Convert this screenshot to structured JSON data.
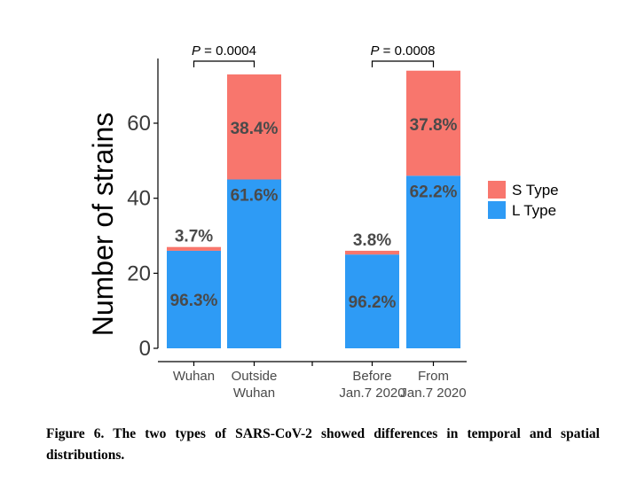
{
  "chart_data": {
    "type": "bar",
    "stacked": true,
    "ylabel": "Number of strains",
    "ylim": [
      0,
      75
    ],
    "yticks": [
      0,
      20,
      40,
      60
    ],
    "grid": false,
    "legend_position": "right",
    "categories": [
      [
        "Wuhan"
      ],
      [
        "Outside",
        "Wuhan"
      ],
      [
        "Before",
        "Jan.7 2020"
      ],
      [
        "From",
        "Jan.7 2020"
      ]
    ],
    "series": [
      {
        "name": "L Type",
        "color": "#2e9bf5",
        "values": [
          26,
          45,
          25,
          46
        ],
        "labels": [
          "96.3%",
          "61.6%",
          "96.2%",
          "62.2%"
        ]
      },
      {
        "name": "S Type",
        "color": "#f8766d",
        "values": [
          1,
          28,
          1,
          28
        ],
        "labels": [
          "3.7%",
          "38.4%",
          "3.8%",
          "37.8%"
        ]
      }
    ],
    "annotations": [
      {
        "text": "P = 0.0004",
        "between": [
          0,
          1
        ]
      },
      {
        "text": "P = 0.0008",
        "between": [
          2,
          3
        ]
      }
    ]
  },
  "caption": "Figure 6. The two types of SARS-CoV-2 showed differences in temporal and spatial distributions."
}
